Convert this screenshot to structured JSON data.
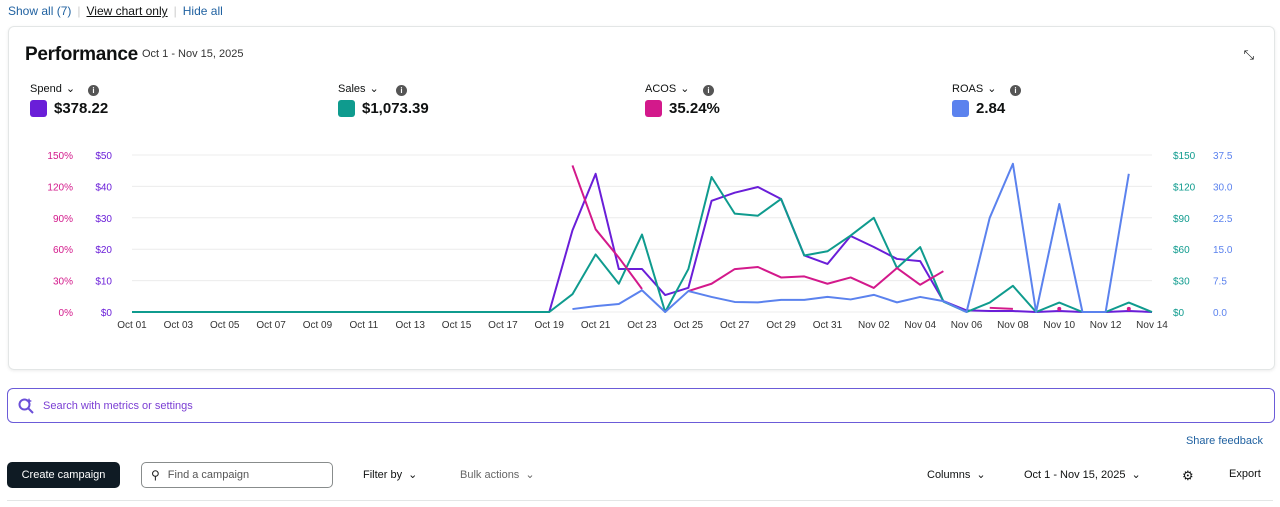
{
  "top_links": {
    "show_all": "Show all (7)",
    "view_chart_only": "View chart only",
    "hide_all": "Hide all"
  },
  "performance": {
    "title": "Performance",
    "date_range": "Oct 1 - Nov 15, 2025"
  },
  "metrics": [
    {
      "label": "Spend",
      "value": "$378.22",
      "color": "#6a1ed8"
    },
    {
      "label": "Sales",
      "value": "$1,073.39",
      "color": "#0f9b8e"
    },
    {
      "label": "ACOS",
      "value": "35.24%",
      "color": "#d3198b"
    },
    {
      "label": "ROAS",
      "value": "2.84",
      "color": "#5b82ee"
    }
  ],
  "chart_data": {
    "type": "line",
    "x": [
      "Oct 01",
      "Oct 02",
      "Oct 03",
      "Oct 04",
      "Oct 05",
      "Oct 06",
      "Oct 07",
      "Oct 08",
      "Oct 09",
      "Oct 10",
      "Oct 11",
      "Oct 12",
      "Oct 13",
      "Oct 14",
      "Oct 15",
      "Oct 16",
      "Oct 17",
      "Oct 18",
      "Oct 19",
      "Oct 20",
      "Oct 21",
      "Oct 22",
      "Oct 23",
      "Oct 24",
      "Oct 25",
      "Oct 26",
      "Oct 27",
      "Oct 28",
      "Oct 29",
      "Oct 30",
      "Oct 31",
      "Nov 01",
      "Nov 02",
      "Nov 03",
      "Nov 04",
      "Nov 05",
      "Nov 06",
      "Nov 07",
      "Nov 08",
      "Nov 09",
      "Nov 10",
      "Nov 11",
      "Nov 12",
      "Nov 13",
      "Nov 14"
    ],
    "x_tick_labels": [
      "Oct 01",
      "Oct 03",
      "Oct 05",
      "Oct 07",
      "Oct 09",
      "Oct 11",
      "Oct 13",
      "Oct 15",
      "Oct 17",
      "Oct 19",
      "Oct 21",
      "Oct 23",
      "Oct 25",
      "Oct 27",
      "Oct 29",
      "Oct 31",
      "Nov 02",
      "Nov 04",
      "Nov 06",
      "Nov 08",
      "Nov 10",
      "Nov 12",
      "Nov 14"
    ],
    "axes": {
      "acos": {
        "ticks": [
          "0%",
          "30%",
          "60%",
          "90%",
          "120%",
          "150%"
        ],
        "range": [
          0,
          150
        ]
      },
      "spend": {
        "ticks": [
          "$0",
          "$10",
          "$20",
          "$30",
          "$40",
          "$50"
        ],
        "range": [
          0,
          50
        ]
      },
      "sales": {
        "ticks": [
          "$0",
          "$30",
          "$60",
          "$90",
          "$120",
          "$150"
        ],
        "range": [
          0,
          150
        ]
      },
      "roas": {
        "ticks": [
          "0.0",
          "7.5",
          "15.0",
          "22.5",
          "30.0",
          "37.5"
        ],
        "range": [
          0,
          37.5
        ]
      }
    },
    "grid": true,
    "series": [
      {
        "name": "Spend",
        "axis": "spend",
        "values": [
          0,
          0,
          0,
          0,
          0,
          0,
          0,
          0,
          0,
          0,
          0,
          0,
          0,
          0,
          0,
          0,
          0,
          0,
          0,
          26,
          44,
          13.7,
          13.7,
          5.4,
          7.7,
          35.4,
          38,
          39.8,
          36,
          18,
          15.3,
          24.2,
          20.7,
          16.9,
          16.2,
          3.5,
          0.5,
          0.3,
          0.3,
          0,
          0.3,
          0,
          0,
          0.3,
          0
        ]
      },
      {
        "name": "Sales",
        "axis": "sales",
        "values": [
          0,
          0,
          0,
          0,
          0,
          0,
          0,
          0,
          0,
          0,
          0,
          0,
          0,
          0,
          0,
          0,
          0,
          0,
          0,
          17,
          55,
          27,
          74,
          0,
          41,
          129,
          94,
          92,
          108,
          54,
          58,
          73,
          90,
          42,
          62,
          10,
          0,
          9,
          25,
          0,
          9,
          0,
          0,
          9,
          0
        ]
      },
      {
        "name": "ACOS",
        "axis": "acos",
        "values": [
          null,
          null,
          null,
          null,
          null,
          null,
          null,
          null,
          null,
          null,
          null,
          null,
          null,
          null,
          null,
          null,
          null,
          null,
          null,
          140,
          79,
          52,
          22,
          null,
          20,
          27,
          41,
          43,
          33,
          34,
          27,
          33,
          23,
          42,
          26,
          39,
          null,
          4,
          3,
          null,
          3,
          null,
          null,
          3,
          null
        ]
      },
      {
        "name": "ROAS",
        "axis": "roas",
        "values": [
          null,
          null,
          null,
          null,
          null,
          null,
          null,
          null,
          null,
          null,
          null,
          null,
          null,
          null,
          null,
          null,
          null,
          null,
          null,
          0.7,
          1.4,
          1.9,
          5.2,
          0,
          5,
          3.6,
          2.4,
          2.3,
          2.9,
          2.9,
          3.6,
          3,
          4.1,
          2.3,
          3.6,
          2.6,
          0,
          22.5,
          35.4,
          0,
          25.8,
          0,
          0,
          33,
          null
        ]
      }
    ]
  },
  "search": {
    "placeholder": "Search with metrics or settings"
  },
  "share_feedback": "Share feedback",
  "toolbar": {
    "create_campaign": "Create campaign",
    "find_placeholder": "Find a campaign",
    "filter_by": "Filter by",
    "bulk_actions": "Bulk actions",
    "columns": "Columns",
    "date_range": "Oct 1 - Nov 15, 2025",
    "export": "Export"
  }
}
